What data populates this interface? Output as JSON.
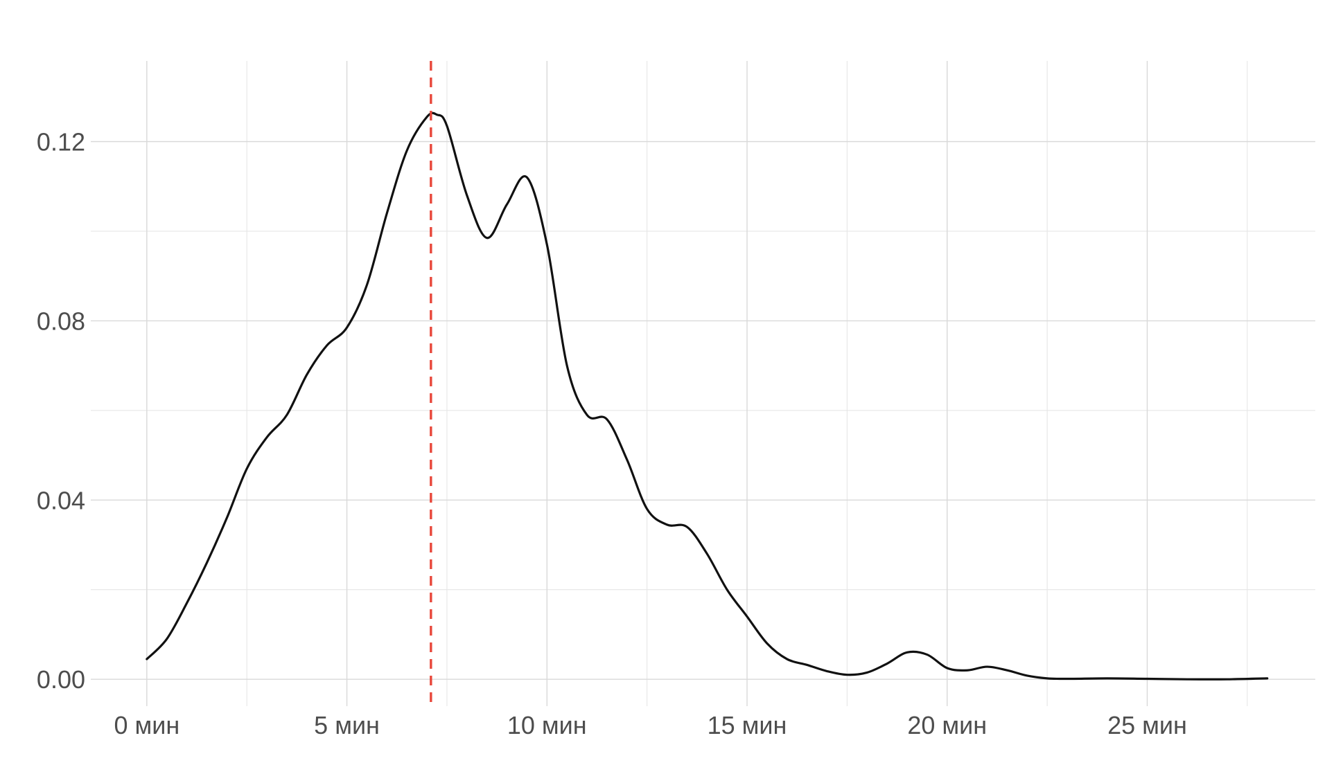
{
  "chart_data": {
    "type": "line",
    "title": "",
    "xlabel": "",
    "ylabel": "",
    "xlim": [
      -1.4,
      29.2
    ],
    "ylim": [
      -0.006,
      0.138
    ],
    "x_breaks": [
      0,
      5,
      10,
      15,
      20,
      25
    ],
    "x_tick_labels": [
      "0 мин",
      "5 мин",
      "10 мин",
      "15 мин",
      "20 мин",
      "25 мин"
    ],
    "x_minor_breaks": [
      2.5,
      7.5,
      12.5,
      17.5,
      22.5,
      27.5
    ],
    "y_breaks": [
      0.0,
      0.04,
      0.08,
      0.12
    ],
    "y_tick_labels": [
      "0.00",
      "0.04",
      "0.08",
      "0.12"
    ],
    "y_minor_breaks": [
      0.02,
      0.06,
      0.1
    ],
    "grid": true,
    "legend": "none",
    "reference_line": {
      "x": 7.1,
      "style": "dashed",
      "color": "#e8473a"
    },
    "series": [
      {
        "color": "#111111",
        "x": [
          0,
          0.5,
          1,
          1.5,
          2,
          2.5,
          3,
          3.5,
          4,
          4.5,
          5,
          5.5,
          6,
          6.5,
          7,
          7.25,
          7.5,
          8,
          8.5,
          9,
          9.5,
          10,
          10.5,
          11,
          11.5,
          12,
          12.5,
          13,
          13.5,
          14,
          14.5,
          15,
          15.5,
          16,
          16.5,
          17,
          17.5,
          18,
          18.5,
          19,
          19.5,
          20,
          20.5,
          21,
          21.5,
          22,
          22.5,
          23,
          24,
          25,
          26,
          27,
          28
        ],
        "y": [
          0.0045,
          0.009,
          0.017,
          0.026,
          0.036,
          0.047,
          0.054,
          0.059,
          0.068,
          0.0745,
          0.0785,
          0.088,
          0.104,
          0.118,
          0.1255,
          0.126,
          0.1235,
          0.108,
          0.0985,
          0.106,
          0.112,
          0.097,
          0.07,
          0.059,
          0.058,
          0.049,
          0.038,
          0.0345,
          0.034,
          0.028,
          0.02,
          0.014,
          0.008,
          0.0045,
          0.0032,
          0.0018,
          0.001,
          0.0015,
          0.0035,
          0.006,
          0.0055,
          0.0025,
          0.002,
          0.0028,
          0.002,
          0.0008,
          0.0002,
          0.0001,
          0.0002,
          0.0001,
          0.0,
          0.0,
          0.0002
        ]
      }
    ]
  }
}
